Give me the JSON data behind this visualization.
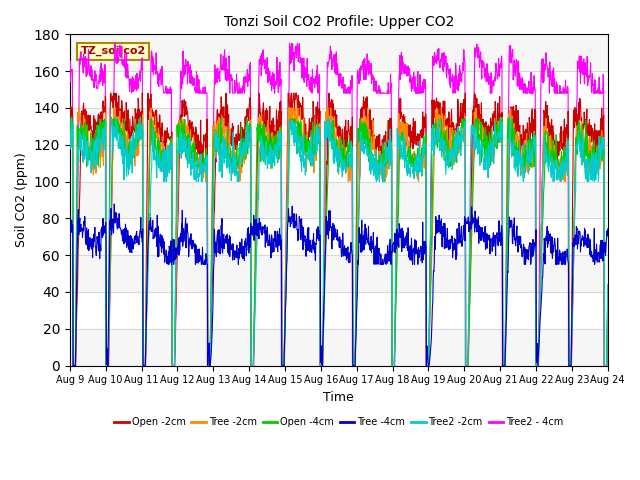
{
  "title": "Tonzi Soil CO2 Profile: Upper CO2",
  "xlabel": "Time",
  "ylabel": "Soil CO2 (ppm)",
  "ylim": [
    0,
    180
  ],
  "yticks": [
    0,
    20,
    40,
    60,
    80,
    100,
    120,
    140,
    160,
    180
  ],
  "legend_label": "TZ_soilco2",
  "series_labels": [
    "Open -2cm",
    "Tree -2cm",
    "Open -4cm",
    "Tree -4cm",
    "Tree2 -2cm",
    "Tree2 - 4cm"
  ],
  "series_colors": [
    "#cc0000",
    "#ff8800",
    "#00cc00",
    "#0000cc",
    "#00cccc",
    "#ff00ff"
  ],
  "xtick_labels": [
    "Aug 9",
    "Aug 10",
    "Aug 11",
    "Aug 12",
    "Aug 13",
    "Aug 14",
    "Aug 15",
    "Aug 16",
    "Aug 17",
    "Aug 18",
    "Aug 19",
    "Aug 20",
    "Aug 21",
    "Aug 22",
    "Aug 23",
    "Aug 24"
  ],
  "background_color": "#ffffff",
  "grid_color": "#d8d8d8",
  "label_box_facecolor": "#ffffcc",
  "label_box_edgecolor": "#aa8800",
  "figsize": [
    6.4,
    4.8
  ],
  "dpi": 100
}
